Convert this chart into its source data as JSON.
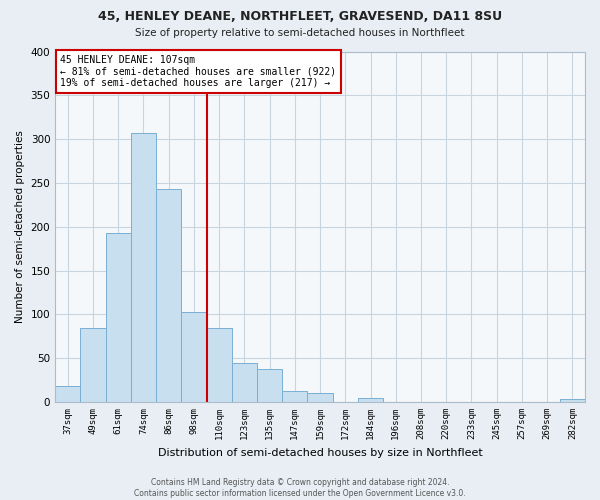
{
  "title": "45, HENLEY DEANE, NORTHFLEET, GRAVESEND, DA11 8SU",
  "subtitle": "Size of property relative to semi-detached houses in Northfleet",
  "xlabel": "Distribution of semi-detached houses by size in Northfleet",
  "ylabel": "Number of semi-detached properties",
  "bar_labels": [
    "37sqm",
    "49sqm",
    "61sqm",
    "74sqm",
    "86sqm",
    "98sqm",
    "110sqm",
    "123sqm",
    "135sqm",
    "147sqm",
    "159sqm",
    "172sqm",
    "184sqm",
    "196sqm",
    "208sqm",
    "220sqm",
    "233sqm",
    "245sqm",
    "257sqm",
    "269sqm",
    "282sqm"
  ],
  "bar_values": [
    18,
    85,
    193,
    307,
    243,
    103,
    85,
    44,
    38,
    13,
    10,
    0,
    5,
    0,
    0,
    0,
    0,
    0,
    0,
    0,
    3
  ],
  "bar_color": "#c8dff0",
  "bar_edge_color": "#7aafd4",
  "vline_color": "#cc0000",
  "annotation_title": "45 HENLEY DEANE: 107sqm",
  "annotation_line2": "← 81% of semi-detached houses are smaller (922)",
  "annotation_line3": "19% of semi-detached houses are larger (217) →",
  "annotation_box_color": "#ffffff",
  "annotation_box_edge": "#cc0000",
  "ylim": [
    0,
    400
  ],
  "yticks": [
    0,
    50,
    100,
    150,
    200,
    250,
    300,
    350,
    400
  ],
  "footer_line1": "Contains HM Land Registry data © Crown copyright and database right 2024.",
  "footer_line2": "Contains public sector information licensed under the Open Government Licence v3.0.",
  "bg_color": "#e8eef4",
  "plot_bg_color": "#f5f8fb",
  "grid_color": "#c8d4de"
}
